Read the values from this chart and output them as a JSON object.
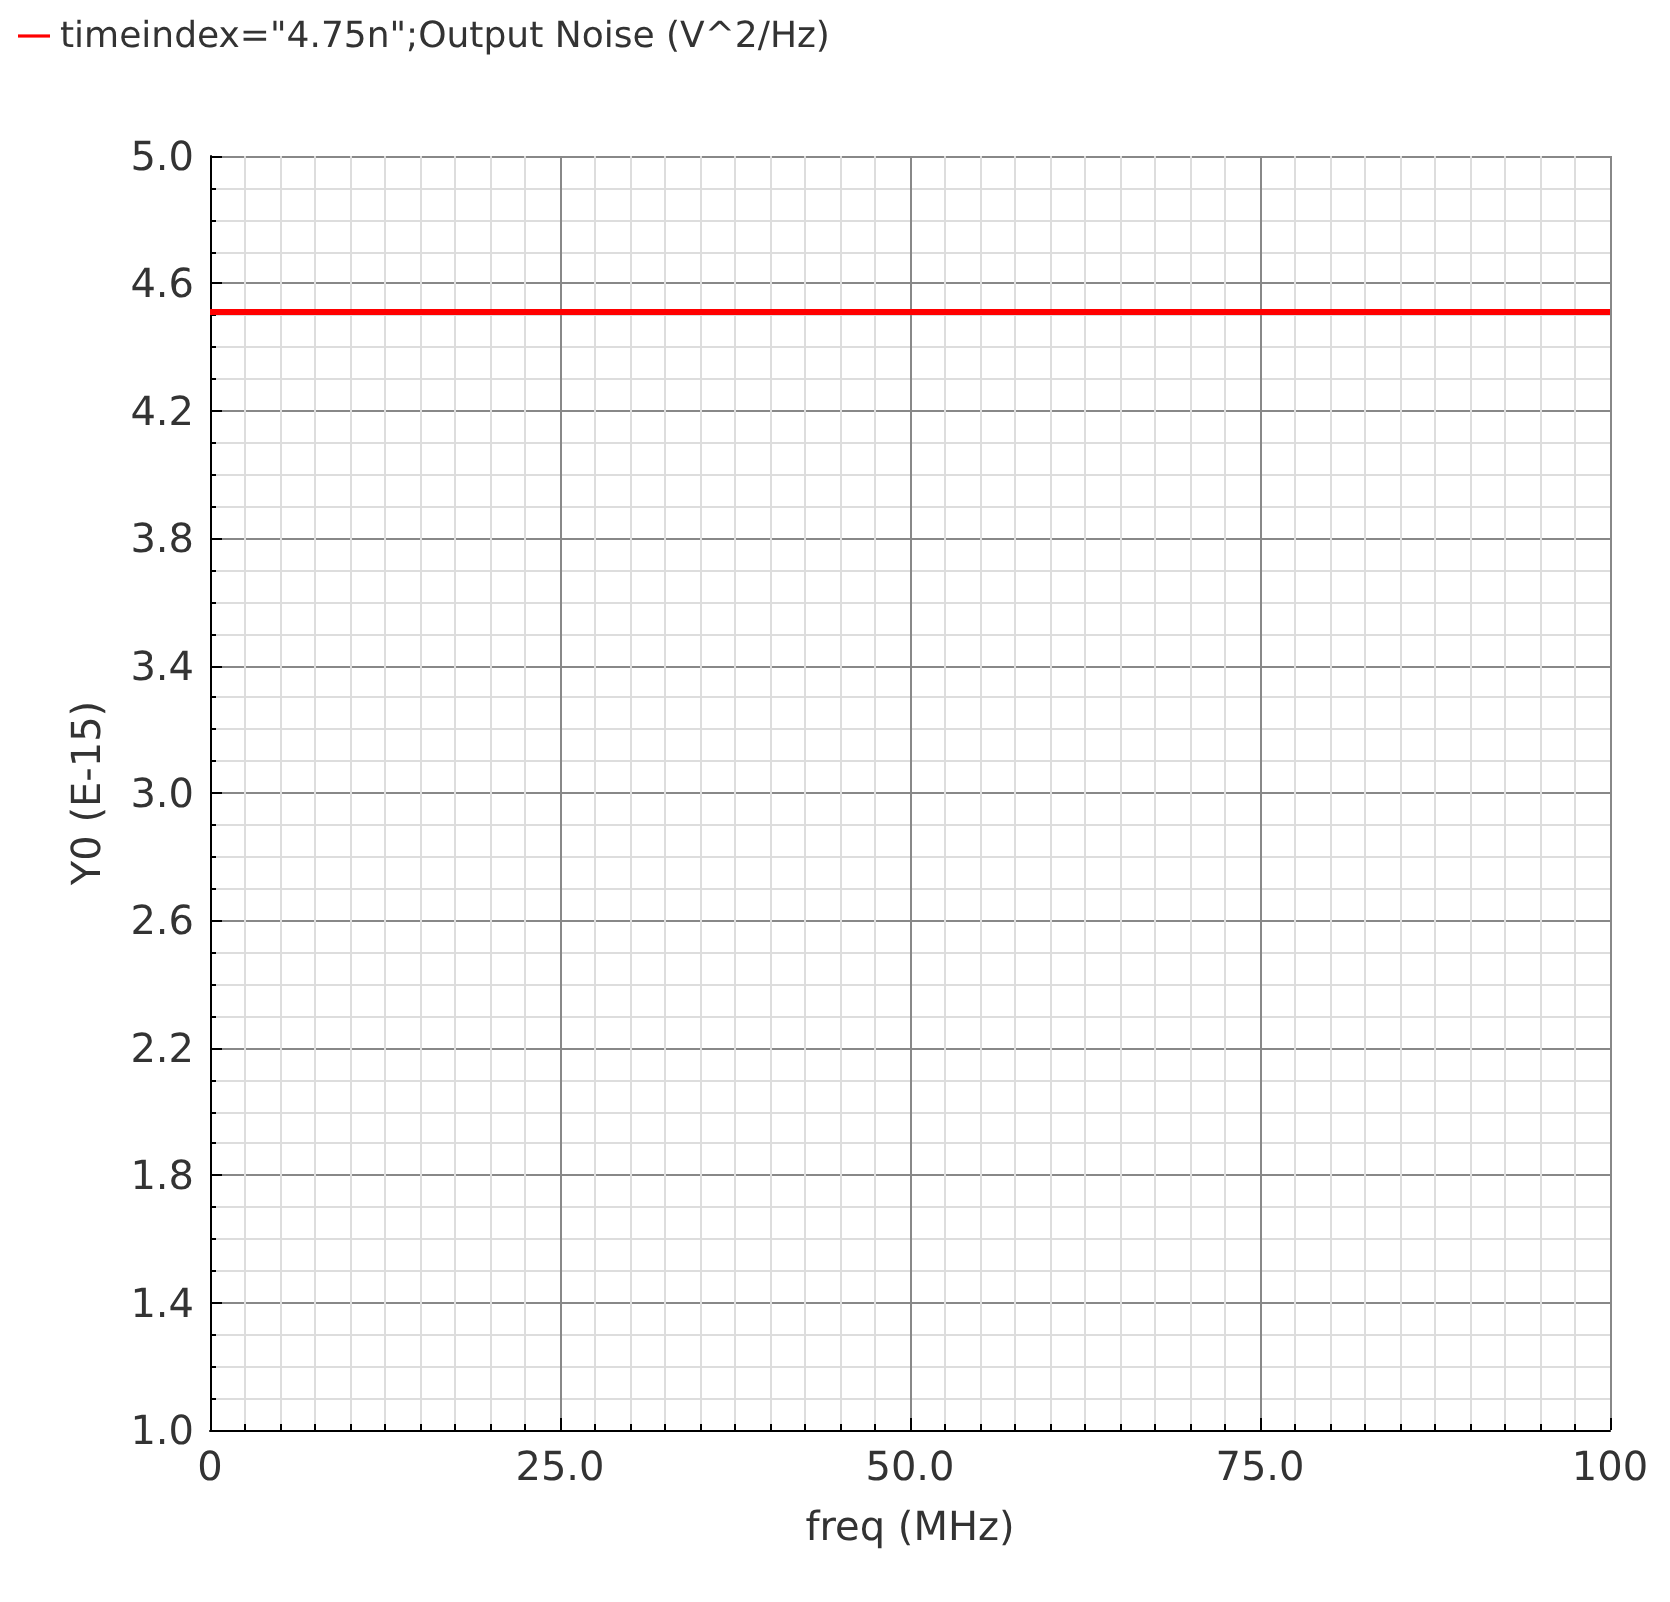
{
  "chart_data": {
    "type": "line",
    "xlabel": "freq (MHz)",
    "ylabel": "Y0 (E-15)",
    "x": [
      0,
      100
    ],
    "series": [
      {
        "name": "timeindex=\"4.75n\";Output Noise (V^2/Hz)",
        "color": "#ff0000",
        "values": [
          4.51,
          4.51
        ]
      }
    ],
    "xlim": [
      0,
      100
    ],
    "xticks": [
      0,
      {
        "value": 25,
        "label": "25.0"
      },
      {
        "value": 50,
        "label": "50.0"
      },
      {
        "value": 75,
        "label": "75.0"
      },
      100
    ],
    "ylim": [
      1.0,
      5.0
    ],
    "yticks": [
      {
        "value": 1.0,
        "label": "1.0"
      },
      {
        "value": 1.4,
        "label": "1.4"
      },
      {
        "value": 1.8,
        "label": "1.8"
      },
      {
        "value": 2.2,
        "label": "2.2"
      },
      {
        "value": 2.6,
        "label": "2.6"
      },
      {
        "value": 3.0,
        "label": "3.0"
      },
      {
        "value": 3.4,
        "label": "3.4"
      },
      {
        "value": 3.8,
        "label": "3.8"
      },
      {
        "value": 4.2,
        "label": "4.2"
      },
      {
        "value": 4.6,
        "label": "4.6"
      },
      {
        "value": 5.0,
        "label": "5.0"
      }
    ],
    "grid": true,
    "legend": "top left",
    "marker": "none",
    "line_style": "solid"
  }
}
